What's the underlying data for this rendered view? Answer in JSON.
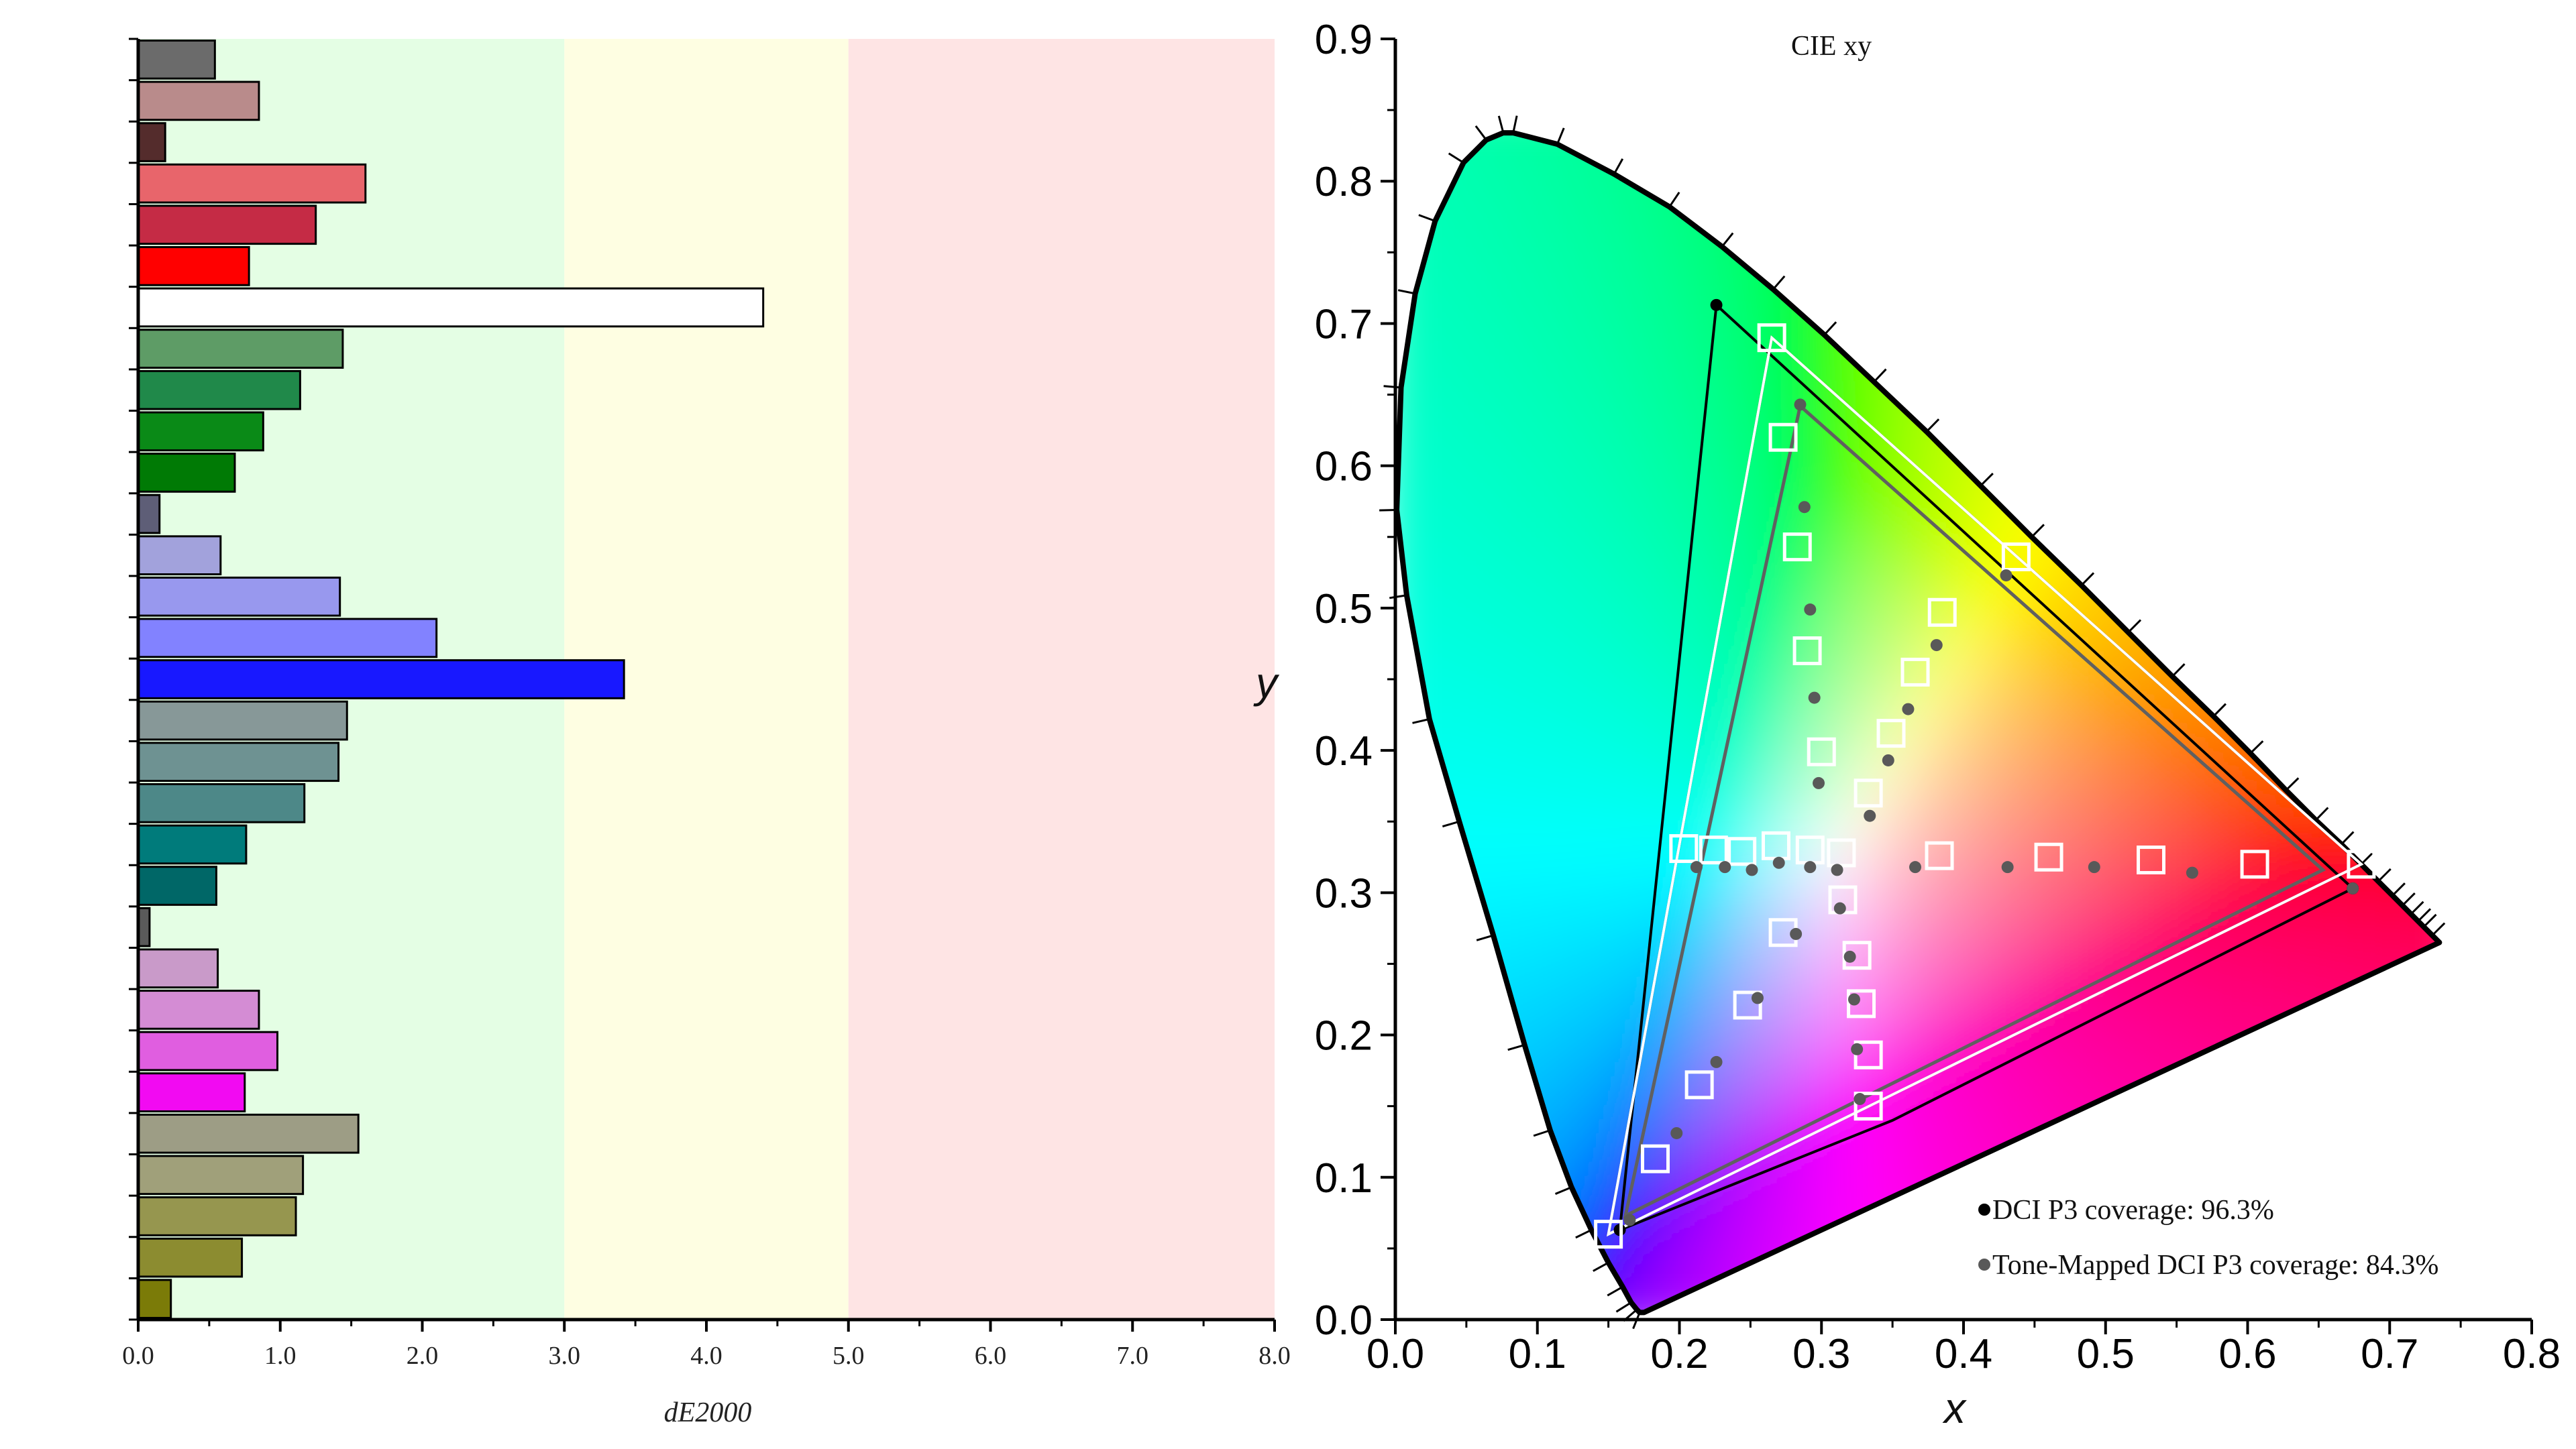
{
  "chart_data": [
    {
      "type": "bar",
      "orientation": "horizontal",
      "xlabel": "dE2000",
      "xlim": [
        0,
        8
      ],
      "x_ticks": [
        "0.0",
        "1.0",
        "2.0",
        "3.0",
        "4.0",
        "5.0",
        "6.0",
        "7.0",
        "8.0"
      ],
      "zones": [
        {
          "from": 0,
          "to": 3,
          "color": "#e4fee4"
        },
        {
          "from": 3,
          "to": 5,
          "color": "#fefee2"
        },
        {
          "from": 5,
          "to": 8,
          "color": "#fee4e4"
        }
      ],
      "bars": [
        {
          "value": 0.54,
          "color": "#6b6b6b"
        },
        {
          "value": 0.85,
          "color": "#b98b8b"
        },
        {
          "value": 0.19,
          "color": "#542c2c"
        },
        {
          "value": 1.6,
          "color": "#e8656b"
        },
        {
          "value": 1.25,
          "color": "#c52b45"
        },
        {
          "value": 0.78,
          "color": "#ff0000"
        },
        {
          "value": 4.4,
          "color": "#ffffff"
        },
        {
          "value": 1.44,
          "color": "#5e9c66"
        },
        {
          "value": 1.14,
          "color": "#20894a"
        },
        {
          "value": 0.88,
          "color": "#0a8a17"
        },
        {
          "value": 0.68,
          "color": "#007a05"
        },
        {
          "value": 0.15,
          "color": "#5e5e77"
        },
        {
          "value": 0.58,
          "color": "#a2a2dc"
        },
        {
          "value": 1.42,
          "color": "#9898ee"
        },
        {
          "value": 2.1,
          "color": "#8282ff"
        },
        {
          "value": 3.42,
          "color": "#1818ff"
        },
        {
          "value": 1.47,
          "color": "#879898"
        },
        {
          "value": 1.41,
          "color": "#6e9292"
        },
        {
          "value": 1.17,
          "color": "#4d8888"
        },
        {
          "value": 0.76,
          "color": "#007b7b"
        },
        {
          "value": 0.55,
          "color": "#006767"
        },
        {
          "value": 0.08,
          "color": "#5a5a5a"
        },
        {
          "value": 0.56,
          "color": "#c99ac9"
        },
        {
          "value": 0.85,
          "color": "#d48cd4"
        },
        {
          "value": 0.98,
          "color": "#e05ee0"
        },
        {
          "value": 0.75,
          "color": "#f20af2"
        },
        {
          "value": 1.55,
          "color": "#9d9d85"
        },
        {
          "value": 1.16,
          "color": "#a0a07a"
        },
        {
          "value": 1.11,
          "color": "#96964f"
        },
        {
          "value": 0.73,
          "color": "#8c8c30"
        },
        {
          "value": 0.23,
          "color": "#7b7b08"
        }
      ]
    },
    {
      "type": "scatter",
      "title": "CIE xy",
      "xlabel": "x",
      "ylabel": "y",
      "xlim": [
        0,
        0.8
      ],
      "ylim": [
        0,
        0.9
      ],
      "x_ticks": [
        "0.0",
        "0.1",
        "0.2",
        "0.3",
        "0.4",
        "0.5",
        "0.6",
        "0.7",
        "0.8"
      ],
      "y_ticks": [
        "0.0",
        "0.1",
        "0.2",
        "0.3",
        "0.4",
        "0.5",
        "0.6",
        "0.7",
        "0.8",
        "0.9"
      ],
      "locus": [
        [
          0.175,
          0.005
        ],
        [
          0.172,
          0.005
        ],
        [
          0.17,
          0.007
        ],
        [
          0.166,
          0.012
        ],
        [
          0.16,
          0.023
        ],
        [
          0.15,
          0.04
        ],
        [
          0.138,
          0.063
        ],
        [
          0.124,
          0.093
        ],
        [
          0.109,
          0.133
        ],
        [
          0.091,
          0.193
        ],
        [
          0.069,
          0.27
        ],
        [
          0.045,
          0.35
        ],
        [
          0.024,
          0.422
        ],
        [
          0.008,
          0.509
        ],
        [
          0.001,
          0.569
        ],
        [
          0.004,
          0.655
        ],
        [
          0.014,
          0.721
        ],
        [
          0.028,
          0.772
        ],
        [
          0.048,
          0.813
        ],
        [
          0.064,
          0.829
        ],
        [
          0.076,
          0.834
        ],
        [
          0.083,
          0.834
        ],
        [
          0.114,
          0.826
        ],
        [
          0.154,
          0.805
        ],
        [
          0.193,
          0.782
        ],
        [
          0.23,
          0.754
        ],
        [
          0.266,
          0.724
        ],
        [
          0.302,
          0.692
        ],
        [
          0.337,
          0.659
        ],
        [
          0.374,
          0.624
        ],
        [
          0.412,
          0.586
        ],
        [
          0.448,
          0.55
        ],
        [
          0.483,
          0.516
        ],
        [
          0.516,
          0.483
        ],
        [
          0.547,
          0.452
        ],
        [
          0.576,
          0.424
        ],
        [
          0.602,
          0.398
        ],
        [
          0.627,
          0.372
        ],
        [
          0.648,
          0.351
        ],
        [
          0.666,
          0.334
        ],
        [
          0.68,
          0.32
        ],
        [
          0.692,
          0.308
        ],
        [
          0.702,
          0.298
        ],
        [
          0.709,
          0.291
        ],
        [
          0.715,
          0.285
        ],
        [
          0.72,
          0.28
        ],
        [
          0.724,
          0.276
        ],
        [
          0.73,
          0.27
        ],
        [
          0.735,
          0.265
        ]
      ],
      "series": [
        {
          "name": "DCI P3 target",
          "color": "#000000",
          "polygon": [
            [
              0.68,
              0.32
            ],
            [
              0.265,
              0.69
            ],
            [
              0.15,
              0.06
            ]
          ]
        },
        {
          "name": "Measured gamut",
          "color": "#000000",
          "polygon": [
            [
              0.674,
              0.303
            ],
            [
              0.226,
              0.713
            ],
            [
              0.158,
              0.063
            ],
            [
              0.35,
              0.14
            ]
          ]
        },
        {
          "name": "Tone-mapped gamut",
          "color": "#606060",
          "polygon": [
            [
              0.653,
              0.316
            ],
            [
              0.285,
              0.642
            ],
            [
              0.162,
              0.073
            ]
          ]
        },
        {
          "name": "Target points",
          "color": "#ffffff",
          "points": [
            [
              0.265,
              0.69
            ],
            [
              0.273,
              0.62
            ],
            [
              0.283,
              0.543
            ],
            [
              0.29,
              0.47
            ],
            [
              0.3,
              0.399
            ],
            [
              0.333,
              0.37
            ],
            [
              0.349,
              0.412
            ],
            [
              0.366,
              0.455
            ],
            [
              0.385,
              0.497
            ],
            [
              0.437,
              0.536
            ],
            [
              0.68,
              0.32
            ],
            [
              0.605,
              0.32
            ],
            [
              0.532,
              0.323
            ],
            [
              0.46,
              0.325
            ],
            [
              0.383,
              0.326
            ],
            [
              0.314,
              0.328
            ],
            [
              0.292,
              0.33
            ],
            [
              0.268,
              0.333
            ],
            [
              0.244,
              0.329
            ],
            [
              0.224,
              0.33
            ],
            [
              0.203,
              0.331
            ],
            [
              0.315,
              0.295
            ],
            [
              0.325,
              0.256
            ],
            [
              0.328,
              0.222
            ],
            [
              0.333,
              0.186
            ],
            [
              0.333,
              0.15
            ],
            [
              0.273,
              0.272
            ],
            [
              0.248,
              0.221
            ],
            [
              0.214,
              0.165
            ],
            [
              0.183,
              0.113
            ],
            [
              0.15,
              0.06
            ]
          ]
        },
        {
          "name": "Measured points",
          "color": "#595959",
          "points": [
            [
              0.285,
              0.643
            ],
            [
              0.288,
              0.571
            ],
            [
              0.292,
              0.499
            ],
            [
              0.295,
              0.437
            ],
            [
              0.298,
              0.377
            ],
            [
              0.334,
              0.354
            ],
            [
              0.347,
              0.393
            ],
            [
              0.361,
              0.429
            ],
            [
              0.381,
              0.474
            ],
            [
              0.43,
              0.523
            ],
            [
              0.674,
              0.303
            ],
            [
              0.561,
              0.314
            ],
            [
              0.492,
              0.318
            ],
            [
              0.431,
              0.318
            ],
            [
              0.366,
              0.318
            ],
            [
              0.311,
              0.316
            ],
            [
              0.292,
              0.318
            ],
            [
              0.27,
              0.321
            ],
            [
              0.251,
              0.316
            ],
            [
              0.232,
              0.318
            ],
            [
              0.212,
              0.318
            ],
            [
              0.313,
              0.289
            ],
            [
              0.32,
              0.255
            ],
            [
              0.323,
              0.225
            ],
            [
              0.325,
              0.19
            ],
            [
              0.327,
              0.155
            ],
            [
              0.282,
              0.271
            ],
            [
              0.255,
              0.226
            ],
            [
              0.226,
              0.181
            ],
            [
              0.198,
              0.131
            ],
            [
              0.165,
              0.07
            ]
          ]
        }
      ],
      "legend": [
        {
          "label": "DCI P3 coverage: 96.3%",
          "color": "#000000"
        },
        {
          "label": "Tone-Mapped DCI P3 coverage: 84.3%",
          "color": "#595959"
        }
      ]
    }
  ]
}
